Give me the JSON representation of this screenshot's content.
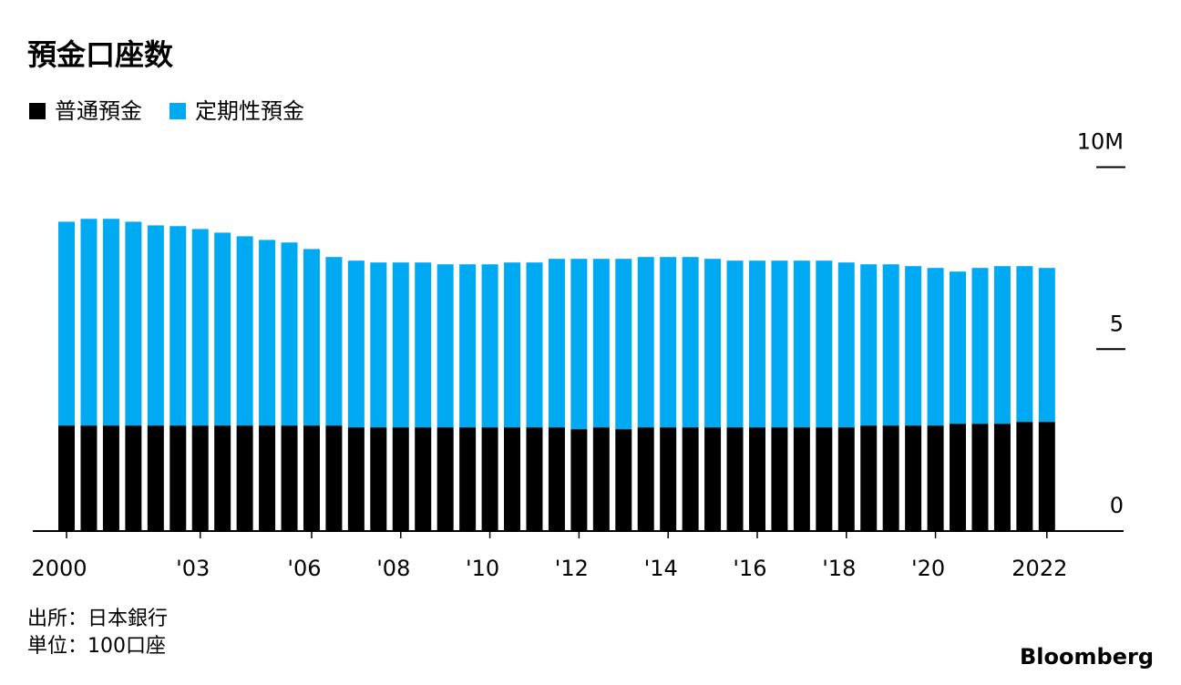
{
  "chart_data": {
    "type": "stacked-bar",
    "title": "預金口座数",
    "categories": [
      "2000",
      null,
      null,
      null,
      null,
      null,
      "'03",
      null,
      null,
      null,
      null,
      "'06",
      null,
      null,
      null,
      "'08",
      null,
      null,
      null,
      "'10",
      null,
      null,
      null,
      "'12",
      null,
      null,
      null,
      "'14",
      null,
      null,
      null,
      "'16",
      null,
      null,
      null,
      "'18",
      null,
      null,
      null,
      "'20",
      null,
      null,
      null,
      null,
      "2022"
    ],
    "series": [
      {
        "name": "普通預金",
        "color": "#000000",
        "values": [
          2.9,
          2.9,
          2.9,
          2.9,
          2.9,
          2.9,
          2.9,
          2.9,
          2.9,
          2.9,
          2.9,
          2.9,
          2.9,
          2.85,
          2.85,
          2.85,
          2.85,
          2.85,
          2.85,
          2.85,
          2.85,
          2.85,
          2.85,
          2.8,
          2.85,
          2.8,
          2.85,
          2.85,
          2.85,
          2.85,
          2.85,
          2.85,
          2.85,
          2.85,
          2.85,
          2.85,
          2.9,
          2.9,
          2.9,
          2.9,
          2.95,
          2.95,
          2.95,
          3.0,
          3.0
        ]
      },
      {
        "name": "定期性預金",
        "color": "#00aaf2",
        "values": [
          5.6,
          5.68,
          5.68,
          5.6,
          5.5,
          5.48,
          5.4,
          5.3,
          5.2,
          5.1,
          5.03,
          4.85,
          4.63,
          4.58,
          4.53,
          4.53,
          4.53,
          4.48,
          4.48,
          4.48,
          4.53,
          4.53,
          4.63,
          4.68,
          4.63,
          4.68,
          4.68,
          4.68,
          4.68,
          4.63,
          4.58,
          4.58,
          4.58,
          4.58,
          4.58,
          4.53,
          4.43,
          4.43,
          4.38,
          4.33,
          4.18,
          4.28,
          4.33,
          4.28,
          4.23
        ]
      }
    ],
    "ylim": [
      0,
      10
    ],
    "yticks": [
      0,
      5,
      {
        "value": 10,
        "label": "10M"
      }
    ],
    "source": "出所：日本銀行",
    "unit": "単位：100口座",
    "brand": "Bloomberg"
  }
}
